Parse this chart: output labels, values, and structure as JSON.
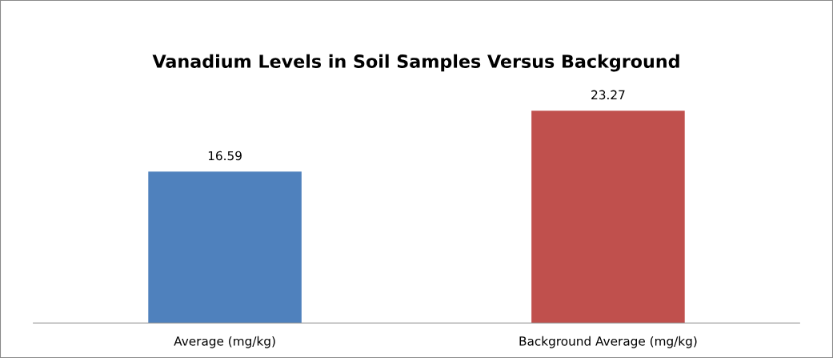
{
  "chart_data": {
    "type": "bar",
    "title": "Vanadium Levels in Soil Samples Versus Background",
    "categories": [
      "Average (mg/kg)",
      "Background Average (mg/kg)"
    ],
    "values": [
      16.59,
      23.27
    ],
    "colors": [
      "#4f81bd",
      "#c0504d"
    ],
    "data_labels": true,
    "grid": false,
    "legend": false
  }
}
